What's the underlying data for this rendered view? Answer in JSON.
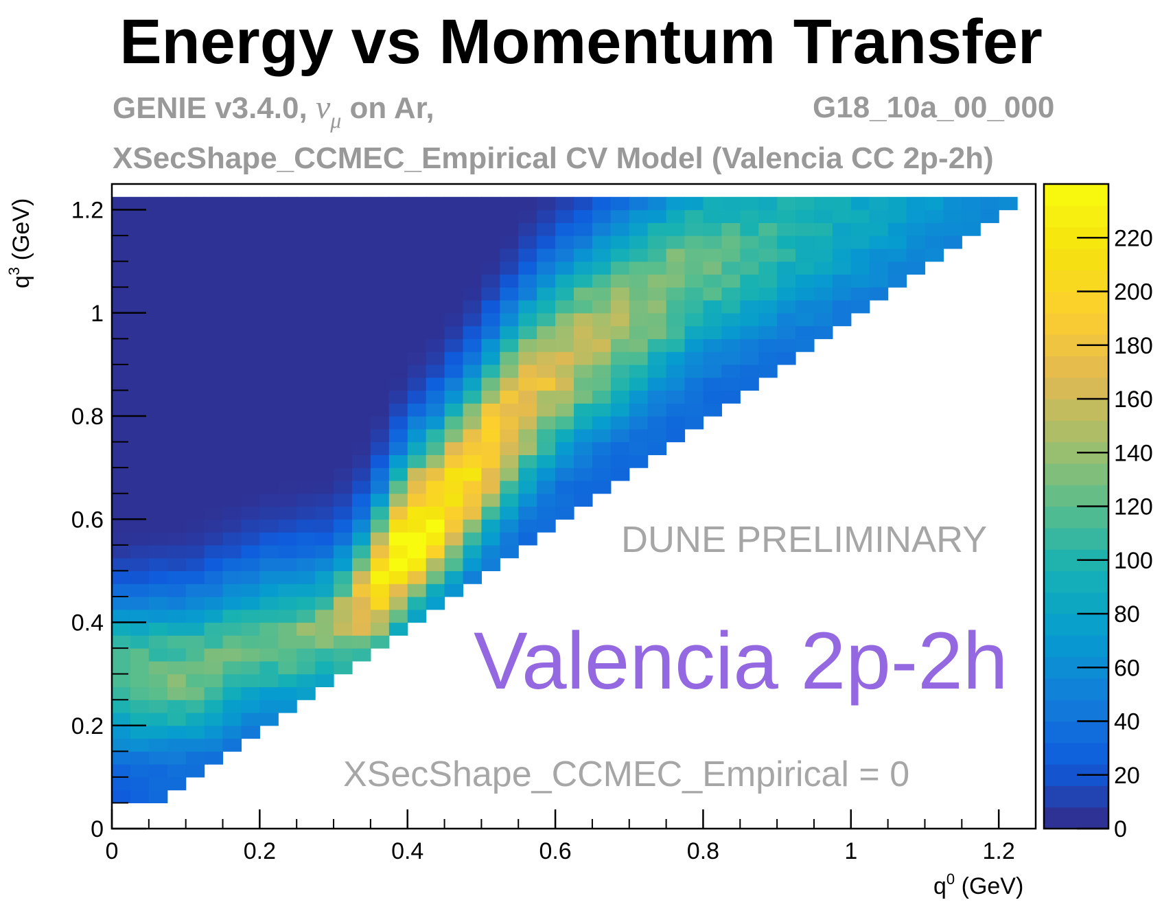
{
  "title": "Energy vs Momentum Transfer",
  "subtitle": {
    "generator": "GENIE v3.4.0,",
    "probe_symbol": "ν",
    "probe_flavor": "μ",
    "target": "on Ar,",
    "tune": "G18_10a_00_000",
    "model": "XSecShape_CCMEC_Empirical CV Model (Valencia CC 2p-2h)"
  },
  "annotations": {
    "preliminary": "DUNE PRELIMINARY",
    "model_label": "Valencia 2p-2h",
    "parameter": "XSecShape_CCMEC_Empirical = 0"
  },
  "colors": {
    "model_label": "#9368e0",
    "annotation_gray": "#a6a6a6",
    "subtitle_gray": "#999999"
  },
  "chart_data": {
    "type": "heatmap",
    "colormap": "parula",
    "xlabel_base": "q",
    "xlabel_sup": "0",
    "xlabel_unit": " (GeV)",
    "ylabel_base": "q",
    "ylabel_sup": "3",
    "ylabel_unit": " (GeV)",
    "xlim": [
      0,
      1.25
    ],
    "ylim": [
      0,
      1.25
    ],
    "x_ticks": [
      0,
      0.2,
      0.4,
      0.6,
      0.8,
      1,
      1.2
    ],
    "x_tick_labels": [
      "0",
      "0.2",
      "0.4",
      "0.6",
      "0.8",
      "1",
      "1.2"
    ],
    "y_ticks": [
      0,
      0.2,
      0.4,
      0.6,
      0.8,
      1,
      1.2
    ],
    "y_tick_labels": [
      "0",
      "0.2",
      "0.4",
      "0.6",
      "0.8",
      "1",
      "1.2"
    ],
    "bin_width": 0.025,
    "zlim": [
      0,
      240
    ],
    "z_ticks": [
      0,
      20,
      40,
      60,
      80,
      100,
      120,
      140,
      160,
      180,
      200,
      220
    ],
    "z_tick_labels": [
      "0",
      "20",
      "40",
      "60",
      "80",
      "100",
      "120",
      "140",
      "160",
      "180",
      "200",
      "220"
    ],
    "ridge": [
      {
        "x": 0.1,
        "y": 0.3,
        "z": 120
      },
      {
        "x": 0.2,
        "y": 0.35,
        "z": 110
      },
      {
        "x": 0.3,
        "y": 0.35,
        "z": 140
      },
      {
        "x": 0.34,
        "y": 0.4,
        "z": 200
      },
      {
        "x": 0.38,
        "y": 0.5,
        "z": 235
      },
      {
        "x": 0.4,
        "y": 0.55,
        "z": 240
      },
      {
        "x": 0.45,
        "y": 0.62,
        "z": 220
      },
      {
        "x": 0.5,
        "y": 0.72,
        "z": 200
      },
      {
        "x": 0.55,
        "y": 0.82,
        "z": 180
      },
      {
        "x": 0.6,
        "y": 0.9,
        "z": 160
      },
      {
        "x": 0.7,
        "y": 1.0,
        "z": 140
      },
      {
        "x": 0.8,
        "y": 1.1,
        "z": 120
      },
      {
        "x": 0.9,
        "y": 1.15,
        "z": 100
      },
      {
        "x": 1.0,
        "y": 1.2,
        "z": 80
      },
      {
        "x": 1.1,
        "y": 1.2,
        "z": 60
      }
    ],
    "phase_space": {
      "lower_edge": "y approximately equals x",
      "upper_edge": "y = 1.225",
      "x_max": 1.225
    }
  }
}
